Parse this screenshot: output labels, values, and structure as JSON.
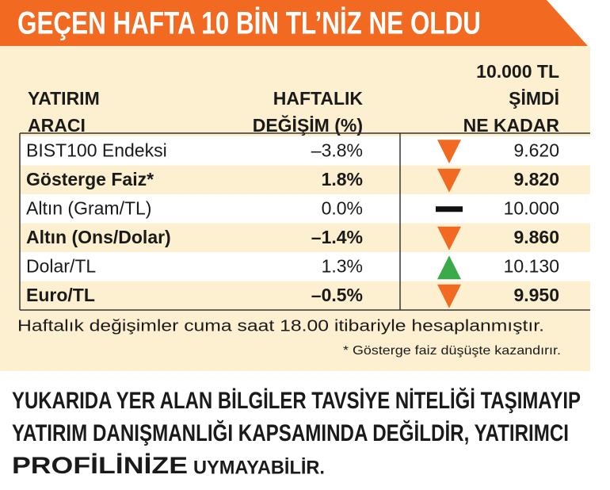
{
  "header": {
    "title": "GEÇEN HAFTA 10 BİN TL’NİZ NE OLDU"
  },
  "table": {
    "columns": [
      [
        "YATIRIM",
        "ARACI"
      ],
      [
        "HAFTALIK",
        "DEĞİŞİM (%)"
      ],
      [
        "10.000 TL",
        "ŞİMDİ",
        "NE KADAR"
      ]
    ],
    "rows": [
      {
        "name": "BIST100 Endeksi",
        "change": "–3.8%",
        "trend": "down",
        "amount": "9.620",
        "bold": false
      },
      {
        "name": "Gösterge Faiz*",
        "change": "1.8%",
        "trend": "down",
        "amount": "9.820",
        "bold": true
      },
      {
        "name": "Altın (Gram/TL)",
        "change": "0.0%",
        "trend": "flat",
        "amount": "10.000",
        "bold": false
      },
      {
        "name": "Altın (Ons/Dolar)",
        "change": "–1.4%",
        "trend": "down",
        "amount": "9.860",
        "bold": true
      },
      {
        "name": "Dolar/TL",
        "change": "1.3%",
        "trend": "up",
        "amount": "10.130",
        "bold": false
      },
      {
        "name": "Euro/TL",
        "change": "–0.5%",
        "trend": "down",
        "amount": "9.950",
        "bold": true
      }
    ],
    "note": "Haftalık değişimler cuma saat 18.00 itibariyle hesaplanmıştır.",
    "footnote": "* Gösterge faiz düşüşte kazandırır."
  },
  "disclaimer": {
    "lines": [
      "YUKARIDA YER ALAN BİLGİLER TAVSİYE NİTELİĞİ TAŞIMAYIP",
      "YATIRIM DANIŞMANLIĞI KAPSAMINDA DEĞİLDİR, YATIRIMCI",
      "PROFİLİNİZE"
    ],
    "tail": "UYMAYABİLİR."
  }
}
